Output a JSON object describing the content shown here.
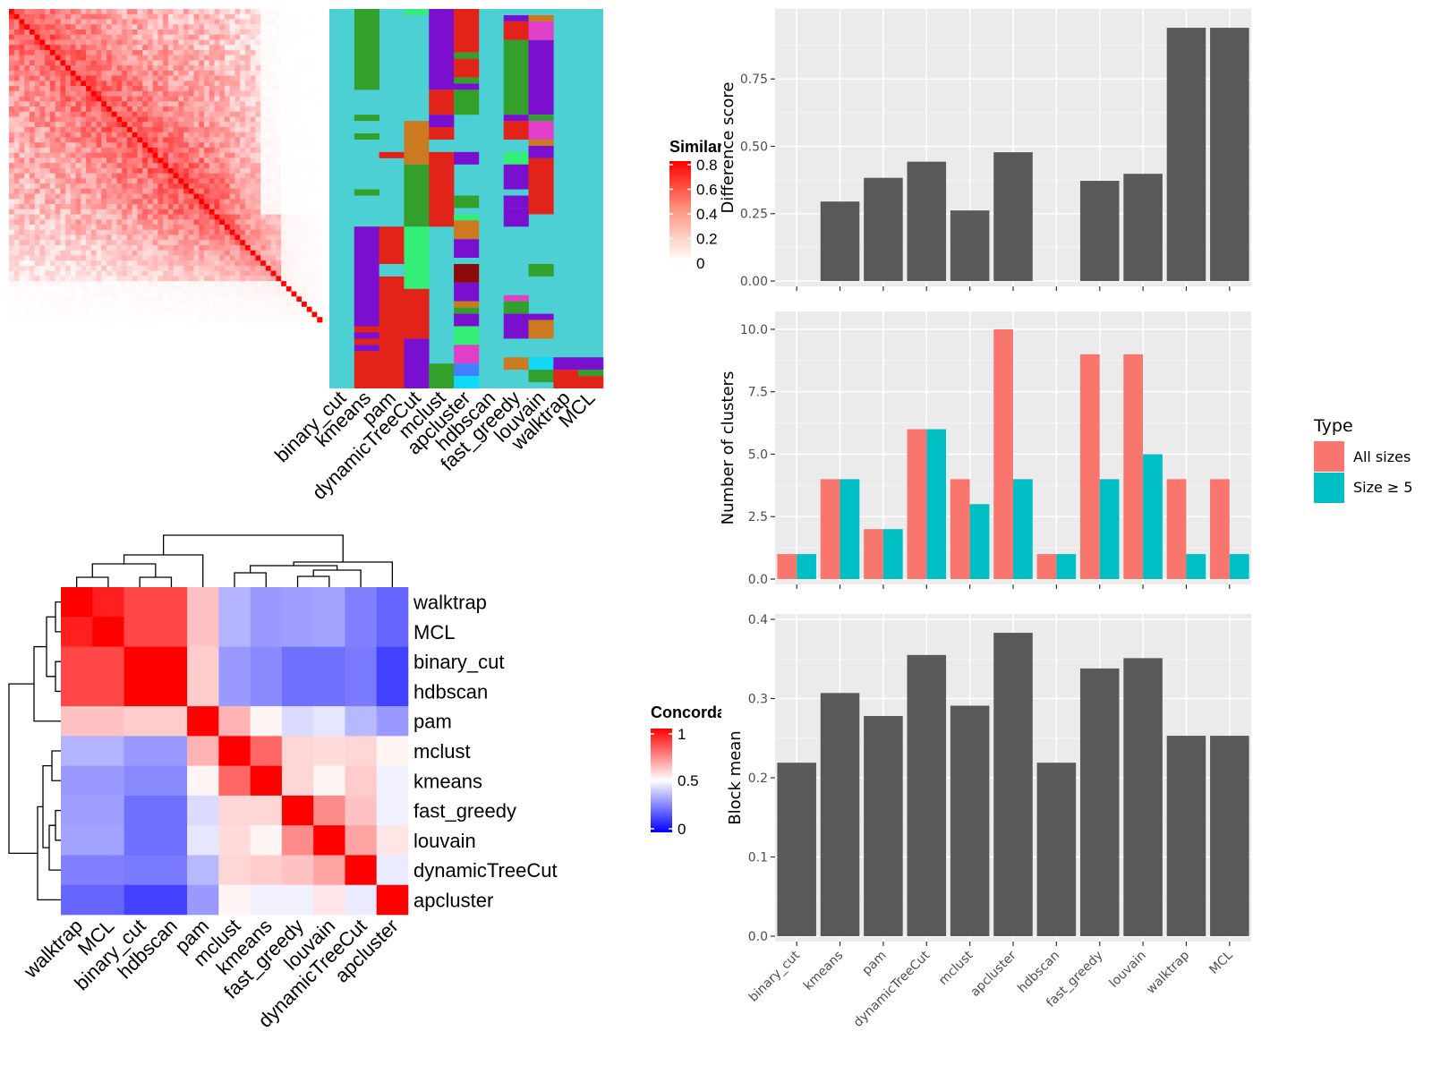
{
  "chart_data": [
    {
      "id": "similarity_heatmap",
      "type": "heatmap",
      "description_visible": "cell x cell similarity matrix (red scale)",
      "colorbar": {
        "title": "Similarity",
        "ticks": [
          "0.8",
          "0.6",
          "0.4",
          "0.2",
          "0"
        ],
        "low_color": "#ffffff",
        "high_color": "#ff0000"
      },
      "n_cells": 61
    },
    {
      "id": "cluster_assignments",
      "type": "heatmap",
      "columns": [
        "binary_cut",
        "kmeans",
        "pam",
        "dynamicTreeCut",
        "mclust",
        "apcluster",
        "hdbscan",
        "fast_greedy",
        "louvain",
        "walktrap",
        "MCL"
      ],
      "palette": {
        "cyan": "#4dd0d4",
        "green": "#33a02c",
        "purple": "#7b0fcf",
        "red": "#e2231a",
        "magenta": "#e040c8",
        "orange": "#cc7a1f",
        "lightgreen": "#33ee77",
        "darkred": "#8b0a0a",
        "blue": "#4080ff",
        "skyblue": "#10d8f8"
      }
    },
    {
      "id": "concordance_heatmap",
      "type": "heatmap",
      "row_labels": [
        "walktrap",
        "MCL",
        "binary_cut",
        "hdbscan",
        "pam",
        "mclust",
        "kmeans",
        "fast_greedy",
        "louvain",
        "dynamicTreeCut",
        "apcluster"
      ],
      "col_labels": [
        "walktrap",
        "MCL",
        "binary_cut",
        "hdbscan",
        "pam",
        "mclust",
        "kmeans",
        "fast_greedy",
        "louvain",
        "dynamicTreeCut",
        "apcluster"
      ],
      "colorbar": {
        "title": "Concordance",
        "ticks": [
          "1",
          "0.5",
          "0"
        ],
        "low_color": "#0000ff",
        "mid_color": "#ffffff",
        "high_color": "#ff0000"
      },
      "values": [
        [
          1.0,
          0.94,
          0.86,
          0.86,
          0.62,
          0.35,
          0.3,
          0.31,
          0.32,
          0.25,
          0.2
        ],
        [
          0.94,
          1.0,
          0.86,
          0.86,
          0.62,
          0.35,
          0.3,
          0.31,
          0.32,
          0.25,
          0.2
        ],
        [
          0.86,
          0.86,
          1.0,
          1.0,
          0.6,
          0.3,
          0.27,
          0.22,
          0.22,
          0.24,
          0.13
        ],
        [
          0.86,
          0.86,
          1.0,
          1.0,
          0.6,
          0.3,
          0.27,
          0.22,
          0.22,
          0.24,
          0.13
        ],
        [
          0.62,
          0.62,
          0.6,
          0.6,
          1.0,
          0.65,
          0.52,
          0.43,
          0.45,
          0.36,
          0.3
        ],
        [
          0.35,
          0.35,
          0.3,
          0.3,
          0.65,
          1.0,
          0.8,
          0.58,
          0.57,
          0.58,
          0.52
        ],
        [
          0.3,
          0.3,
          0.27,
          0.27,
          0.52,
          0.8,
          1.0,
          0.58,
          0.52,
          0.6,
          0.47
        ],
        [
          0.31,
          0.31,
          0.22,
          0.22,
          0.43,
          0.58,
          0.58,
          1.0,
          0.73,
          0.62,
          0.47
        ],
        [
          0.32,
          0.32,
          0.22,
          0.22,
          0.45,
          0.57,
          0.52,
          0.73,
          1.0,
          0.68,
          0.55
        ],
        [
          0.25,
          0.25,
          0.24,
          0.24,
          0.36,
          0.58,
          0.6,
          0.62,
          0.68,
          1.0,
          0.46
        ],
        [
          0.2,
          0.2,
          0.13,
          0.13,
          0.3,
          0.52,
          0.47,
          0.47,
          0.55,
          0.46,
          1.0
        ]
      ]
    },
    {
      "id": "difference_score",
      "type": "bar",
      "categories": [
        "binary_cut",
        "kmeans",
        "pam",
        "dynamicTreeCut",
        "mclust",
        "apcluster",
        "hdbscan",
        "fast_greedy",
        "louvain",
        "walktrap",
        "MCL"
      ],
      "values": [
        0,
        0.295,
        0.383,
        0.443,
        0.262,
        0.478,
        0,
        0.372,
        0.398,
        0.94,
        0.94
      ],
      "ylabel": "Difference score",
      "ylim": [
        0,
        0.99
      ],
      "yticks": [
        "0.00",
        "0.25",
        "0.50",
        "0.75"
      ],
      "bar_color": "#595959"
    },
    {
      "id": "number_of_clusters",
      "type": "bar",
      "categories": [
        "binary_cut",
        "kmeans",
        "pam",
        "dynamicTreeCut",
        "mclust",
        "apcluster",
        "hdbscan",
        "fast_greedy",
        "louvain",
        "walktrap",
        "MCL"
      ],
      "series": [
        {
          "name": "All sizes",
          "color": "#f8766d",
          "values": [
            1,
            4,
            2,
            6,
            4,
            10,
            1,
            9,
            9,
            4,
            4
          ]
        },
        {
          "name": "Size ≥ 5",
          "color": "#00bfc4",
          "values": [
            1,
            4,
            2,
            6,
            3,
            4,
            1,
            4,
            5,
            1,
            1
          ]
        }
      ],
      "ylabel": "Number of clusters",
      "ylim": [
        0,
        10.5
      ],
      "yticks": [
        "0.0",
        "2.5",
        "5.0",
        "7.5",
        "10.0"
      ],
      "legend": {
        "title": "Type",
        "position": "right"
      }
    },
    {
      "id": "block_mean",
      "type": "bar",
      "categories": [
        "binary_cut",
        "kmeans",
        "pam",
        "dynamicTreeCut",
        "mclust",
        "apcluster",
        "hdbscan",
        "fast_greedy",
        "louvain",
        "walktrap",
        "MCL"
      ],
      "values": [
        0.219,
        0.307,
        0.278,
        0.355,
        0.291,
        0.383,
        0.219,
        0.338,
        0.351,
        0.253,
        0.253
      ],
      "ylabel": "Block mean",
      "ylim": [
        0,
        0.4
      ],
      "yticks": [
        "0.0",
        "0.1",
        "0.2",
        "0.3",
        "0.4"
      ],
      "bar_color": "#595959"
    }
  ]
}
